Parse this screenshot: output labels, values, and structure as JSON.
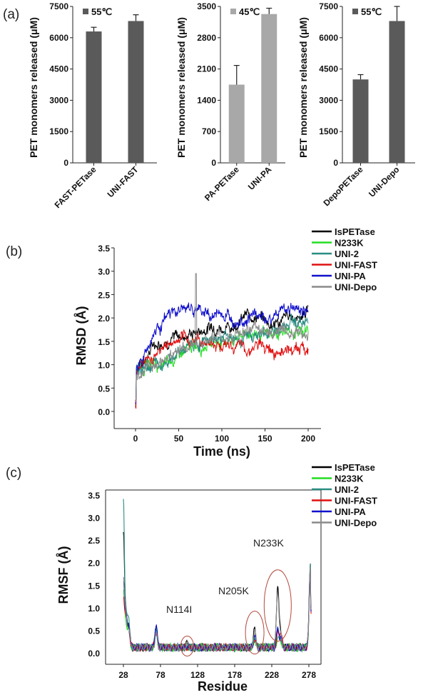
{
  "panels": {
    "a": "(a)",
    "b": "(b)",
    "c": "(c)"
  },
  "chart_data": [
    {
      "type": "bar",
      "panel": "a",
      "temp_label": "55℃",
      "ylabel": "PET monomers released (μM)",
      "ylim": [
        0,
        7500
      ],
      "yticks": [
        "0",
        "1500",
        "3000",
        "4500",
        "6000",
        "7500"
      ],
      "categories": [
        "FAST-PETase",
        "UNI-FAST"
      ],
      "values": [
        6300,
        6800
      ],
      "errors": [
        200,
        300
      ],
      "color": "#5a5a5a"
    },
    {
      "type": "bar",
      "panel": "a",
      "temp_label": "45℃",
      "ylabel": "PET monomers released (μM)",
      "ylim": [
        0,
        3500
      ],
      "yticks": [
        "0",
        "700",
        "1400",
        "2100",
        "2800",
        "3500"
      ],
      "categories": [
        "PA-PETase",
        "UNI-PA"
      ],
      "values": [
        1750,
        3330
      ],
      "errors": [
        430,
        130
      ],
      "color": "#a8a8a8"
    },
    {
      "type": "bar",
      "panel": "a",
      "temp_label": "55℃",
      "ylabel": "PET monomers released (μM)",
      "ylim": [
        0,
        7500
      ],
      "yticks": [
        "0",
        "1500",
        "3000",
        "4500",
        "6000",
        "7500"
      ],
      "categories": [
        "DepoPETase",
        "UNI-Depo"
      ],
      "values": [
        4000,
        6800
      ],
      "errors": [
        230,
        700
      ],
      "color": "#5a5a5a"
    },
    {
      "type": "line",
      "panel": "b",
      "xlabel": "Time (ns)",
      "ylabel": "RMSD (Å)",
      "xlim": [
        0,
        200
      ],
      "ylim": [
        0,
        3.5
      ],
      "xticks": [
        "0",
        "50",
        "100",
        "150",
        "200"
      ],
      "yticks": [
        "0.0",
        "0.5",
        "1.0",
        "1.5",
        "2.0",
        "2.5",
        "3.0",
        "3.5"
      ],
      "series": [
        {
          "name": "IsPETase",
          "color": "#000000",
          "x": [
            0,
            10,
            20,
            30,
            40,
            50,
            60,
            70,
            80,
            90,
            100,
            110,
            120,
            130,
            140,
            150,
            160,
            170,
            180,
            190,
            200
          ],
          "values": [
            0.9,
            1.1,
            1.4,
            1.5,
            1.55,
            1.6,
            1.65,
            1.7,
            1.75,
            1.85,
            1.8,
            1.8,
            1.95,
            2.05,
            2.05,
            1.95,
            1.85,
            1.95,
            2.05,
            2.0,
            2.2
          ]
        },
        {
          "name": "N233K",
          "color": "#22dd22",
          "x": [
            0,
            10,
            20,
            30,
            40,
            50,
            60,
            70,
            80,
            90,
            100,
            110,
            120,
            130,
            140,
            150,
            160,
            170,
            180,
            190,
            200
          ],
          "values": [
            0.9,
            0.95,
            1.0,
            0.95,
            1.05,
            1.2,
            1.3,
            1.4,
            1.45,
            1.5,
            1.5,
            1.55,
            1.6,
            1.65,
            1.7,
            1.6,
            1.65,
            1.7,
            1.65,
            1.75,
            1.75
          ]
        },
        {
          "name": "UNI-2",
          "color": "#2a8c82",
          "x": [
            0,
            10,
            20,
            30,
            40,
            50,
            60,
            70,
            80,
            90,
            100,
            110,
            120,
            130,
            140,
            150,
            160,
            170,
            180,
            190,
            200
          ],
          "values": [
            0.9,
            0.95,
            1.05,
            1.05,
            1.15,
            1.25,
            1.35,
            1.4,
            1.5,
            1.55,
            1.6,
            1.6,
            1.55,
            1.6,
            1.65,
            1.65,
            1.7,
            1.8,
            2.0,
            1.9,
            1.95
          ]
        },
        {
          "name": "UNI-FAST",
          "color": "#e01010",
          "x": [
            0,
            10,
            20,
            30,
            40,
            50,
            60,
            70,
            80,
            90,
            100,
            110,
            120,
            130,
            140,
            150,
            160,
            170,
            180,
            190,
            200
          ],
          "values": [
            0.9,
            1.05,
            1.2,
            1.35,
            1.45,
            1.5,
            1.5,
            1.55,
            1.5,
            1.45,
            1.45,
            1.4,
            1.35,
            1.35,
            1.4,
            1.35,
            1.35,
            1.35,
            1.3,
            1.35,
            1.3
          ]
        },
        {
          "name": "UNI-PA",
          "color": "#1010cc",
          "x": [
            0,
            10,
            20,
            30,
            40,
            50,
            60,
            70,
            80,
            90,
            100,
            110,
            120,
            130,
            140,
            150,
            160,
            170,
            180,
            190,
            200
          ],
          "values": [
            0.9,
            1.2,
            1.65,
            1.9,
            2.05,
            2.15,
            2.2,
            2.15,
            2.1,
            2.05,
            2.1,
            2.0,
            2.05,
            2.0,
            2.1,
            1.95,
            2.0,
            2.2,
            2.25,
            2.15,
            2.2
          ]
        },
        {
          "name": "UNI-Depo",
          "color": "#8a8a8a",
          "x": [
            0,
            10,
            20,
            30,
            40,
            50,
            60,
            70,
            80,
            90,
            100,
            110,
            120,
            130,
            140,
            150,
            160,
            170,
            180,
            190,
            200
          ],
          "values": [
            0.75,
            0.9,
            1.0,
            1.1,
            1.2,
            1.3,
            1.4,
            1.45,
            1.5,
            1.6,
            1.55,
            1.6,
            1.65,
            1.7,
            1.7,
            1.75,
            1.7,
            1.75,
            1.7,
            1.75,
            1.7
          ]
        }
      ]
    },
    {
      "type": "line",
      "panel": "c",
      "xlabel": "Residue",
      "ylabel": "RMSF (Å)",
      "xlim": [
        20,
        300
      ],
      "ylim": [
        0,
        3.5
      ],
      "xticks": [
        "28",
        "78",
        "128",
        "178",
        "228",
        "278"
      ],
      "yticks": [
        "0.0",
        "0.5",
        "1.0",
        "1.5",
        "2.0",
        "2.5",
        "3.0",
        "3.5"
      ],
      "annotations": [
        {
          "label": "N114I",
          "x": 114,
          "y": 0.1
        },
        {
          "label": "N205K",
          "x": 205,
          "y": 0.42
        },
        {
          "label": "N233K",
          "x": 236,
          "y": 1.3
        }
      ],
      "series": [
        {
          "name": "IsPETase",
          "color": "#000000",
          "peaks": [
            [
              28,
              2.5
            ],
            [
              31,
              0.9
            ],
            [
              35,
              0.6
            ],
            [
              72,
              0.5
            ],
            [
              114,
              0.2
            ],
            [
              205,
              0.5
            ],
            [
              236,
              1.5
            ],
            [
              240,
              0.4
            ],
            [
              280,
              1.9
            ]
          ]
        },
        {
          "name": "N233K",
          "color": "#22dd22",
          "peaks": [
            [
              28,
              1.2
            ],
            [
              31,
              0.7
            ],
            [
              35,
              0.5
            ],
            [
              72,
              0.5
            ],
            [
              114,
              0.12
            ],
            [
              205,
              0.3
            ],
            [
              236,
              0.3
            ],
            [
              240,
              0.25
            ],
            [
              280,
              1.8
            ]
          ]
        },
        {
          "name": "UNI-2",
          "color": "#2a8c82",
          "peaks": [
            [
              28,
              3.2
            ],
            [
              31,
              1.0
            ],
            [
              35,
              0.7
            ],
            [
              72,
              0.55
            ],
            [
              114,
              0.1
            ],
            [
              205,
              0.35
            ],
            [
              236,
              0.45
            ],
            [
              240,
              0.3
            ],
            [
              280,
              1.9
            ]
          ]
        },
        {
          "name": "UNI-FAST",
          "color": "#e01010",
          "peaks": [
            [
              28,
              1.1
            ],
            [
              31,
              0.8
            ],
            [
              35,
              0.55
            ],
            [
              72,
              0.45
            ],
            [
              114,
              0.1
            ],
            [
              205,
              0.3
            ],
            [
              236,
              0.4
            ],
            [
              240,
              0.45
            ],
            [
              280,
              1.8
            ]
          ]
        },
        {
          "name": "UNI-PA",
          "color": "#1010cc",
          "peaks": [
            [
              28,
              1.5
            ],
            [
              31,
              0.8
            ],
            [
              35,
              0.6
            ],
            [
              72,
              0.6
            ],
            [
              114,
              0.12
            ],
            [
              205,
              0.35
            ],
            [
              236,
              0.5
            ],
            [
              240,
              0.3
            ],
            [
              280,
              1.85
            ]
          ]
        },
        {
          "name": "UNI-Depo",
          "color": "#8a8a8a",
          "peaks": [
            [
              28,
              1.6
            ],
            [
              31,
              0.8
            ],
            [
              35,
              0.55
            ],
            [
              72,
              0.4
            ],
            [
              114,
              0.15
            ],
            [
              205,
              0.45
            ],
            [
              236,
              1.35
            ],
            [
              240,
              0.35
            ],
            [
              280,
              1.9
            ]
          ]
        }
      ]
    }
  ]
}
